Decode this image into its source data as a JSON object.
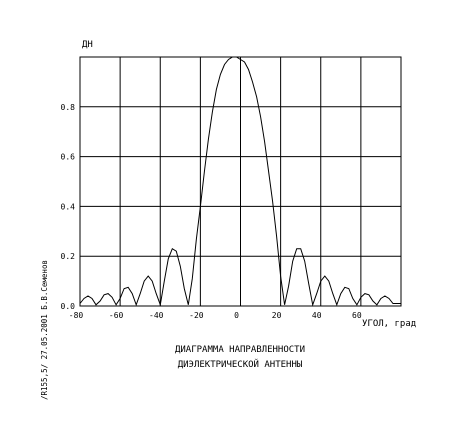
{
  "chart_data": {
    "type": "line",
    "title_lines": [
      "ДИАГРАММА НАПРАВЛЕННОСТИ",
      "ДИЭЛЕКТРИЧЕСКОЙ АНТЕННЫ"
    ],
    "ylabel": "ДН",
    "xlabel": "УГОЛ, град",
    "xlim": [
      -80,
      80
    ],
    "ylim": [
      0,
      1
    ],
    "x_ticks": [
      -80,
      -60,
      -40,
      -20,
      0,
      20,
      40,
      60
    ],
    "x_tick_labels": [
      "-80",
      "-60",
      "-40",
      "-20",
      "0",
      "20",
      "40",
      "60"
    ],
    "y_ticks": [
      0,
      0.2,
      0.4,
      0.6,
      0.8
    ],
    "y_tick_labels": [
      "0.0",
      "0.2",
      "0.4",
      "0.6",
      "0.8"
    ],
    "grid": true,
    "side_note": "/R155,5/  27.05.2001  Б.В.Семенов",
    "series": [
      {
        "color": "#000000",
        "x": [
          -80,
          -78,
          -76,
          -74,
          -72,
          -70,
          -68,
          -66,
          -64,
          -62,
          -60,
          -58,
          -56,
          -54,
          -52,
          -50,
          -48,
          -46,
          -44,
          -42,
          -40,
          -38,
          -36,
          -34,
          -32,
          -30,
          -28,
          -26,
          -24,
          -22,
          -20,
          -18,
          -16,
          -14,
          -12,
          -10,
          -8,
          -6,
          -4,
          -2,
          0,
          2,
          4,
          6,
          8,
          10,
          12,
          14,
          16,
          18,
          20,
          22,
          24,
          26,
          28,
          30,
          32,
          34,
          36,
          38,
          40,
          42,
          44,
          46,
          48,
          50,
          52,
          54,
          56,
          58,
          60,
          62,
          64,
          66,
          68,
          70,
          72,
          74,
          76,
          78,
          80
        ],
        "values": [
          0.01,
          0.03,
          0.04,
          0.03,
          0.005,
          0.02,
          0.045,
          0.05,
          0.035,
          0.005,
          0.03,
          0.07,
          0.075,
          0.05,
          0.005,
          0.05,
          0.1,
          0.12,
          0.1,
          0.05,
          0.005,
          0.1,
          0.19,
          0.23,
          0.22,
          0.16,
          0.07,
          0.005,
          0.11,
          0.27,
          0.4,
          0.54,
          0.67,
          0.78,
          0.87,
          0.93,
          0.97,
          0.99,
          1.0,
          1.0,
          0.99,
          0.98,
          0.95,
          0.9,
          0.84,
          0.76,
          0.66,
          0.54,
          0.42,
          0.28,
          0.12,
          0.005,
          0.08,
          0.18,
          0.23,
          0.23,
          0.18,
          0.09,
          0.005,
          0.05,
          0.1,
          0.12,
          0.1,
          0.05,
          0.005,
          0.05,
          0.075,
          0.07,
          0.03,
          0.005,
          0.035,
          0.05,
          0.045,
          0.02,
          0.005,
          0.03,
          0.04,
          0.03,
          0.01,
          0.01,
          0.01
        ]
      }
    ]
  }
}
